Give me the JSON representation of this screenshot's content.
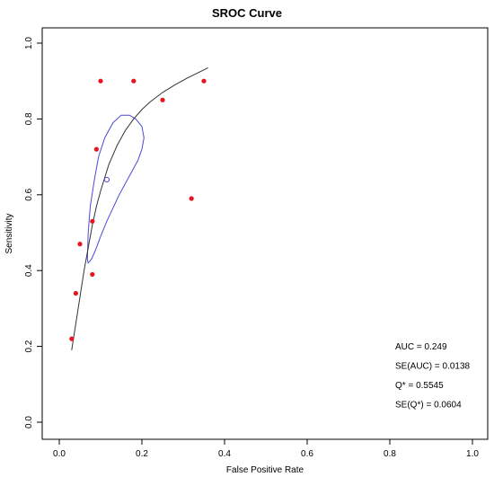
{
  "chart_data": {
    "type": "scatter",
    "title": "SROC Curve",
    "xlabel": "False Positive Rate",
    "ylabel": "Sensitivity",
    "xlim": [
      0,
      1
    ],
    "ylim": [
      0,
      1
    ],
    "grid": false,
    "x_ticks": [
      {
        "value": 0,
        "label": "0.0"
      },
      {
        "value": 0.2,
        "label": "0.2"
      },
      {
        "value": 0.4,
        "label": "0.4"
      },
      {
        "value": 0.6,
        "label": "0.6"
      },
      {
        "value": 0.8,
        "label": "0.8"
      },
      {
        "value": 1,
        "label": "1.0"
      }
    ],
    "y_ticks": [
      {
        "value": 0,
        "label": "0.0"
      },
      {
        "value": 0.2,
        "label": "0.2"
      },
      {
        "value": 0.4,
        "label": "0.4"
      },
      {
        "value": 0.6,
        "label": "0.6"
      },
      {
        "value": 0.8,
        "label": "0.8"
      },
      {
        "value": 1,
        "label": "1.0"
      }
    ],
    "points": [
      {
        "x": 0.03,
        "y": 0.22
      },
      {
        "x": 0.04,
        "y": 0.34
      },
      {
        "x": 0.05,
        "y": 0.47
      },
      {
        "x": 0.08,
        "y": 0.39
      },
      {
        "x": 0.08,
        "y": 0.53
      },
      {
        "x": 0.09,
        "y": 0.72
      },
      {
        "x": 0.1,
        "y": 0.9
      },
      {
        "x": 0.18,
        "y": 0.9
      },
      {
        "x": 0.25,
        "y": 0.85
      },
      {
        "x": 0.32,
        "y": 0.59
      },
      {
        "x": 0.35,
        "y": 0.9
      }
    ],
    "point_color": "#e8141b",
    "summary_point": {
      "x": 0.115,
      "y": 0.64,
      "color": "#4a4ad8"
    },
    "curve": {
      "x_range": [
        0.03,
        0.36
      ],
      "color": "#333333",
      "x": [
        0.03,
        0.04,
        0.05,
        0.06,
        0.07,
        0.08,
        0.09,
        0.1,
        0.12,
        0.14,
        0.16,
        0.18,
        0.2,
        0.22,
        0.25,
        0.28,
        0.31,
        0.34,
        0.36
      ],
      "y": [
        0.19,
        0.26,
        0.33,
        0.4,
        0.46,
        0.52,
        0.57,
        0.61,
        0.68,
        0.73,
        0.77,
        0.8,
        0.825,
        0.845,
        0.87,
        0.89,
        0.908,
        0.924,
        0.935
      ]
    },
    "confidence_region": {
      "color": "#4a4ad8",
      "x": [
        0.068,
        0.07,
        0.075,
        0.085,
        0.095,
        0.11,
        0.13,
        0.15,
        0.17,
        0.185,
        0.2,
        0.205,
        0.2,
        0.19,
        0.175,
        0.16,
        0.145,
        0.13,
        0.115,
        0.1,
        0.088,
        0.078,
        0.07,
        0.068
      ],
      "y": [
        0.43,
        0.5,
        0.57,
        0.64,
        0.7,
        0.75,
        0.79,
        0.81,
        0.81,
        0.8,
        0.78,
        0.75,
        0.72,
        0.69,
        0.66,
        0.63,
        0.6,
        0.565,
        0.53,
        0.49,
        0.455,
        0.43,
        0.42,
        0.43
      ]
    },
    "annotations": [
      {
        "key": "auc",
        "text": "AUC = 0.249"
      },
      {
        "key": "se_auc",
        "text": "SE(AUC) = 0.0138"
      },
      {
        "key": "q",
        "text": "Q* = 0.5545"
      },
      {
        "key": "se_q",
        "text": "SE(Q*) = 0.0604"
      }
    ]
  }
}
